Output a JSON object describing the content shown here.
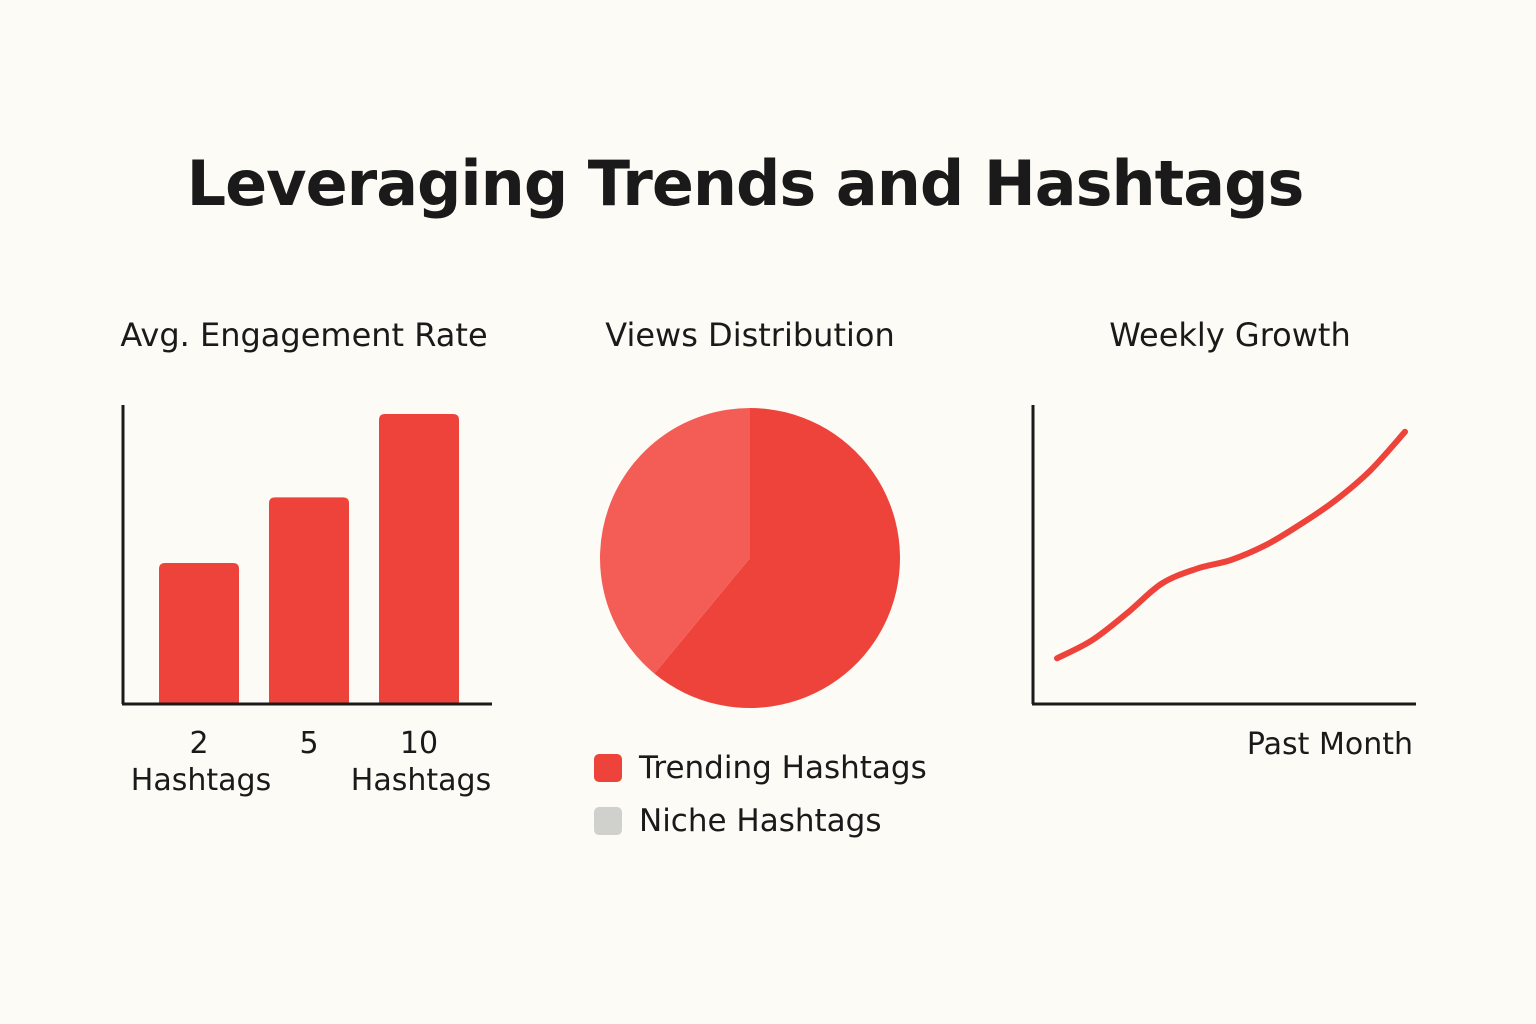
{
  "title": "Leveraging Trends and Hashtags",
  "colors": {
    "bar": "#ee433b",
    "pie_main": "#ee433b",
    "pie_secondary": "#f45d56",
    "line": "#ee433b",
    "niche_swatch": "#d0d0cc",
    "axis": "#1a1a1a"
  },
  "chart_data": [
    {
      "type": "bar",
      "title": "Avg. Engagement Rate",
      "categories": [
        [
          "2",
          "Hashtags"
        ],
        [
          "5"
        ],
        [
          "10",
          "Hashtags"
        ]
      ],
      "values": [
        47,
        69,
        97
      ],
      "ylim": [
        0,
        100
      ],
      "grid": false,
      "ticks": false
    },
    {
      "type": "pie",
      "title": "Views Distribution",
      "slices": [
        {
          "label": "Trending Hashtags",
          "value": 61,
          "color": "#ee433b"
        },
        {
          "label": "Niche Hashtags",
          "value": 39,
          "color": "#f45d56"
        }
      ],
      "legend": {
        "position": "bottom",
        "items": [
          {
            "label": "Trending Hashtags",
            "color": "#ee433b"
          },
          {
            "label": "Niche Hashtags",
            "color": "#d0d0cc"
          }
        ]
      }
    },
    {
      "type": "line",
      "title": "Weekly Growth",
      "xlabel": "Past Month",
      "ylabel": "",
      "x": [
        0,
        1,
        2,
        3,
        4,
        5,
        6,
        7,
        8,
        9,
        10
      ],
      "y": [
        15,
        21,
        30,
        40,
        45,
        48,
        53,
        60,
        68,
        78,
        91
      ],
      "xlim": [
        0,
        10
      ],
      "ylim": [
        0,
        100
      ],
      "grid": false
    }
  ]
}
